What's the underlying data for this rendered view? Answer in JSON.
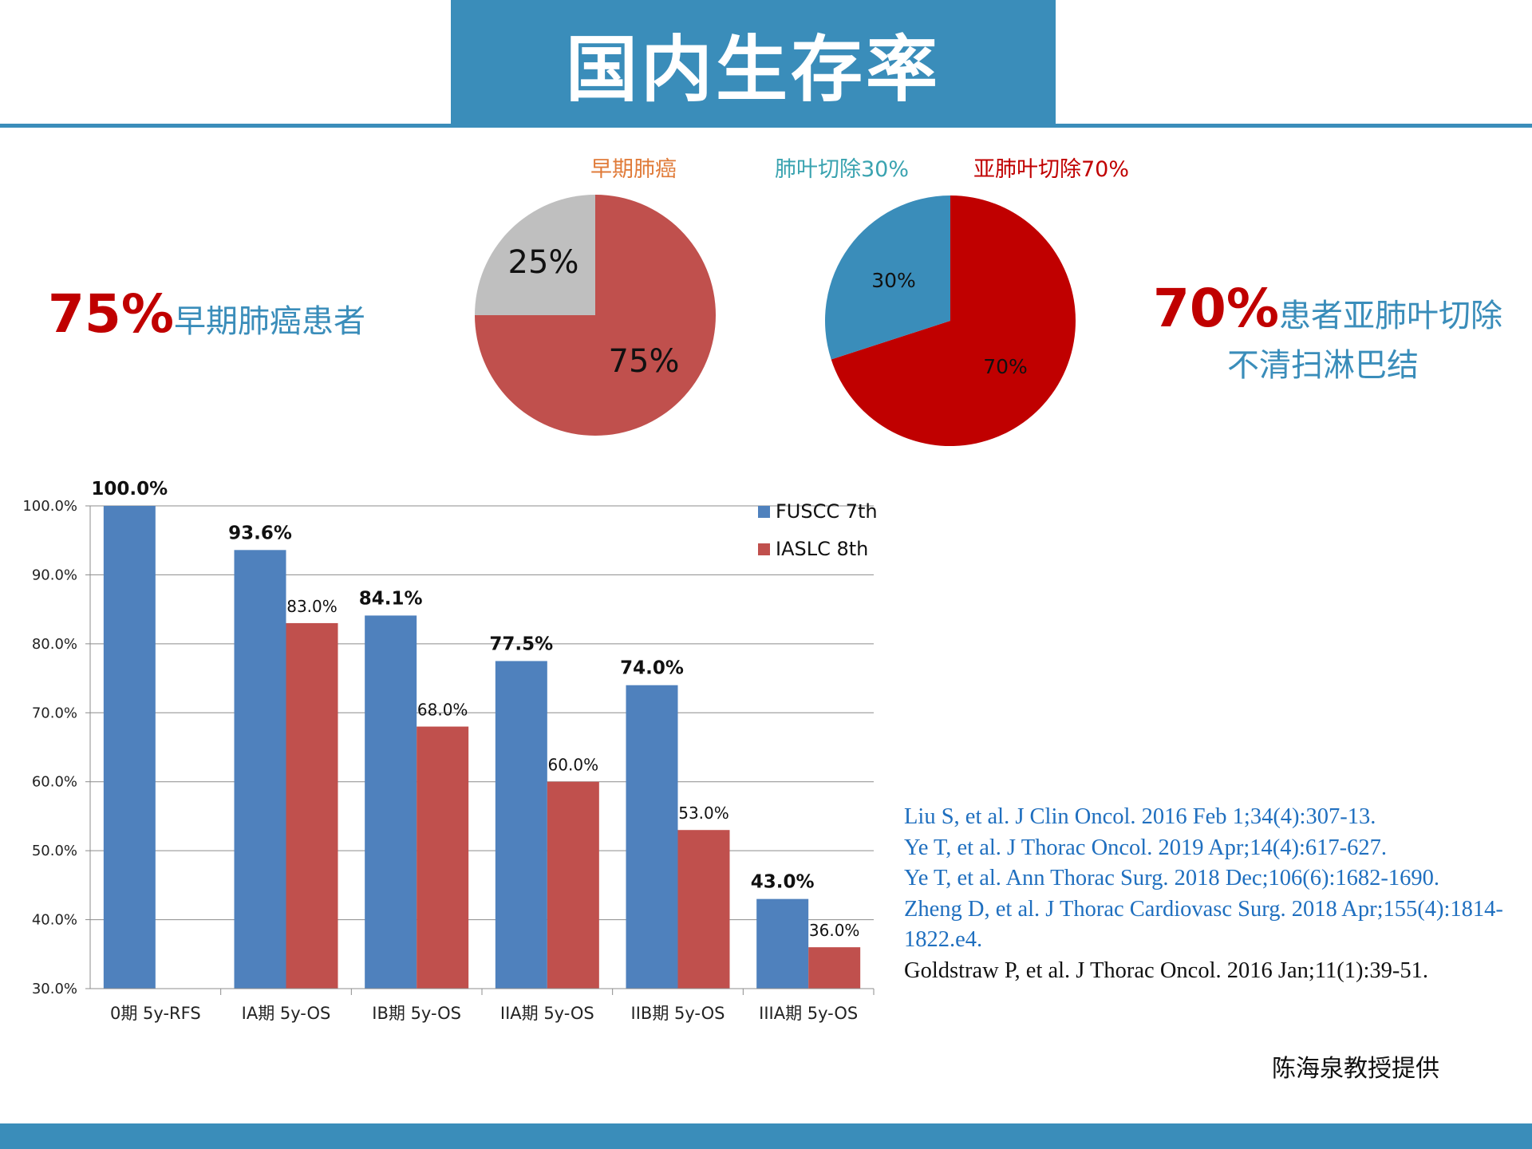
{
  "header": {
    "title": "国内生存率"
  },
  "pie_titles": {
    "early": "早期肺癌",
    "lobectomy": "肺叶切除30%",
    "sublobar": "亚肺叶切除70%"
  },
  "left_stat": {
    "value": "75%",
    "text": "早期肺癌患者"
  },
  "right_stat": {
    "value": "70%",
    "line1": "患者亚肺叶切除",
    "line2": "不清扫淋巴结"
  },
  "references": [
    "Liu S, et al. J Clin Oncol. 2016 Feb 1;34(4):307-13.",
    "Ye T, et al. J Thorac Oncol. 2019 Apr;14(4):617-627.",
    "Ye T, et al. Ann Thorac Surg. 2018 Dec;106(6):1682-1690.",
    "Zheng D, et al. J Thorac Cardiovasc Surg. 2018 Apr;155(4):1814-1822.e4.",
    "Goldstraw P, et al. J Thorac Oncol. 2016 Jan;11(1):39-51."
  ],
  "credit": "陈海泉教授提供",
  "colors": {
    "accent": "#3a8dba",
    "fuscc": "#4f81bd",
    "iaslc": "#c0504d",
    "pie_gray": "#bfbfbf",
    "pie_red": "#c0504d",
    "pie_darkred": "#c00000",
    "pie_blue": "#3a8dba"
  },
  "chart_data": [
    {
      "type": "pie",
      "title": "早期肺癌",
      "values": [
        75,
        25
      ],
      "labels": [
        "75%",
        "25%"
      ],
      "colors": [
        "#c0504d",
        "#bfbfbf"
      ]
    },
    {
      "type": "pie",
      "title": "",
      "values": [
        70,
        30
      ],
      "labels": [
        "70%",
        "30%"
      ],
      "colors": [
        "#c00000",
        "#3a8dba"
      ]
    },
    {
      "type": "bar",
      "categories": [
        "0期  5y-RFS",
        "IA期  5y-OS",
        "IB期  5y-OS",
        "IIA期  5y-OS",
        "IIB期  5y-OS",
        "IIIA期  5y-OS"
      ],
      "series": [
        {
          "name": "FUSCC 7th",
          "values": [
            100.0,
            93.6,
            84.1,
            77.5,
            74.0,
            43.0
          ],
          "labels": [
            "100.0%",
            "93.6%",
            "84.1%",
            "77.5%",
            "74.0%",
            "43.0%"
          ]
        },
        {
          "name": "IASLC  8th",
          "values": [
            null,
            83.0,
            68.0,
            60.0,
            53.0,
            36.0
          ],
          "labels": [
            "",
            "83.0%",
            "68.0%",
            "60.0%",
            "53.0%",
            "36.0%"
          ]
        }
      ],
      "ylim": [
        30,
        100
      ],
      "yticks": [
        "30.0%",
        "40.0%",
        "50.0%",
        "60.0%",
        "70.0%",
        "80.0%",
        "90.0%",
        "100.0%"
      ],
      "grid": true,
      "legend": "top-right"
    }
  ]
}
